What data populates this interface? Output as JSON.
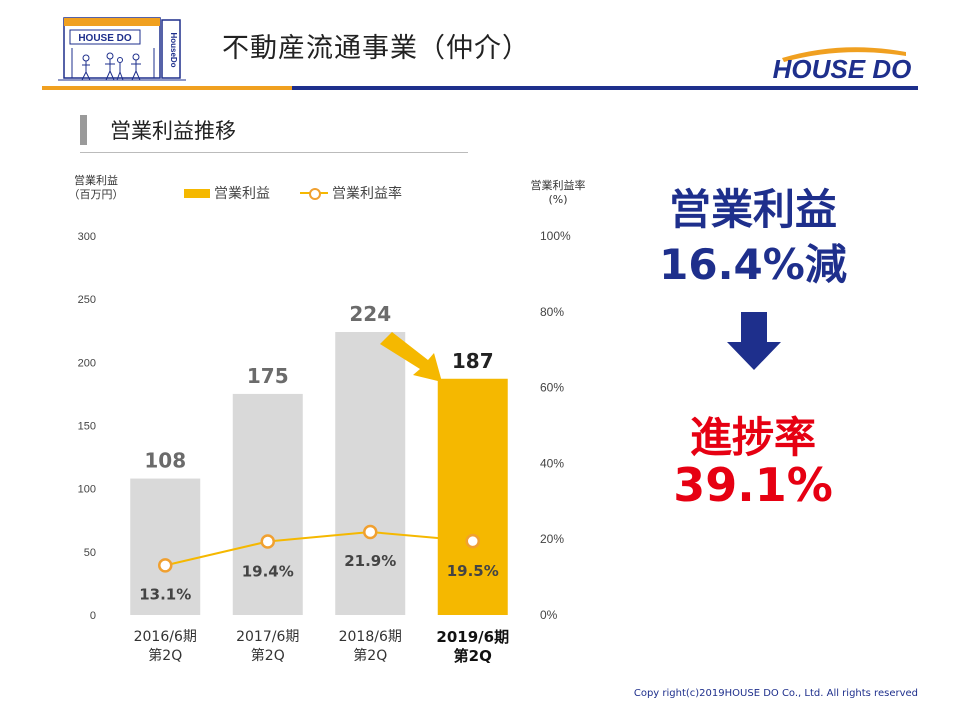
{
  "header": {
    "title": "不動産流通事業（仲介）",
    "logo_text": "HOUSE DO",
    "sign_text": "HouseDo",
    "colors": {
      "orange": "#f0a020",
      "navy": "#1e2f8c"
    }
  },
  "section": {
    "title": "営業利益推移"
  },
  "chart_headers": {
    "left_axis": "営業利益\n（百万円）",
    "right_axis": "営業利益率\n(%)"
  },
  "legend": {
    "bar_label": "営業利益",
    "line_label": "営業利益率"
  },
  "chart_data": {
    "type": "bar",
    "categories": [
      "2016/6期\n第2Q",
      "2017/6期\n第2Q",
      "2018/6期\n第2Q",
      "2019/6期\n第2Q"
    ],
    "series": [
      {
        "name": "営業利益",
        "values": [
          108,
          175,
          224,
          187
        ],
        "axis": "left",
        "labels": [
          "108",
          "175",
          "224",
          "187"
        ]
      },
      {
        "name": "営業利益率",
        "values": [
          13.1,
          19.4,
          21.9,
          19.5
        ],
        "axis": "right",
        "type": "line",
        "labels": [
          "13.1%",
          "19.4%",
          "21.9%",
          "19.5%"
        ]
      }
    ],
    "ylim": [
      0,
      300
    ],
    "y2lim": [
      0,
      100
    ],
    "y_ticks": [
      "0",
      "50",
      "100",
      "150",
      "200",
      "250",
      "300"
    ],
    "y2_ticks": [
      "0%",
      "20%",
      "40%",
      "60%",
      "80%",
      "100%"
    ],
    "highlight_index": 3,
    "colors": {
      "bar": "#d9d9d9",
      "bar_highlight": "#f5b800",
      "line": "#f5b800",
      "marker": "#f0a030",
      "arrow": "#f5b800"
    },
    "grid": false,
    "legend_position": "top"
  },
  "summary": {
    "line1": "営業利益",
    "line2": "16.4%減",
    "line3": "進捗率",
    "line4": "39.1%",
    "colors": {
      "blue": "#1e2f8c",
      "red": "#e60012"
    }
  },
  "footer": {
    "copyright": "Copy right(c)2019HOUSE DO Co., Ltd.  All rights reserved"
  }
}
